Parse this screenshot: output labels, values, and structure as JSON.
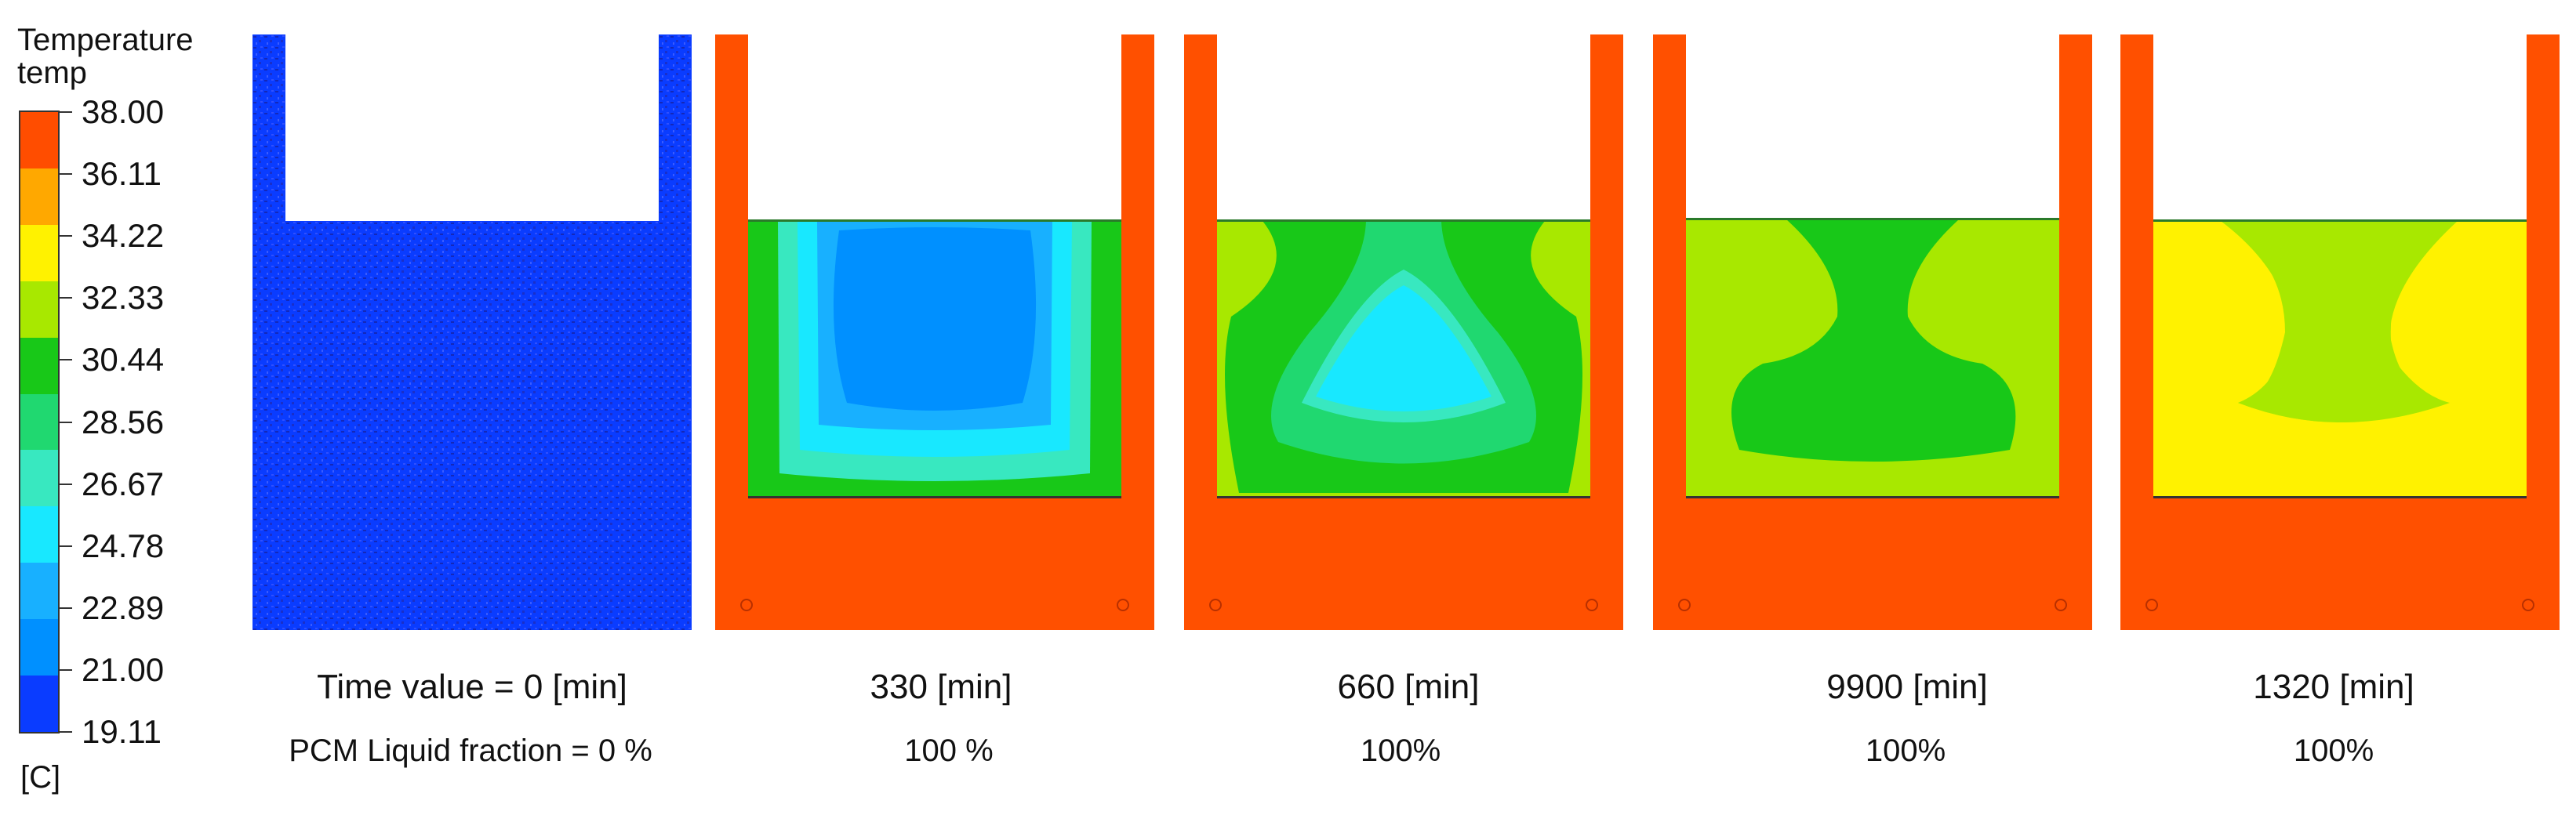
{
  "legend": {
    "title_line1": "Temperature",
    "title_line2": "temp",
    "unit": "[C]",
    "levels": [
      "38.00",
      "36.11",
      "34.22",
      "32.33",
      "30.44",
      "28.56",
      "26.67",
      "24.78",
      "22.89",
      "21.00",
      "19.11"
    ],
    "band_colors": [
      "#ff4d00",
      "#ffa800",
      "#fff200",
      "#a8e800",
      "#18c818",
      "#20d870",
      "#38e8c0",
      "#18e8ff",
      "#18b0ff",
      "#0090ff",
      "#0a3cff"
    ]
  },
  "colors": {
    "wall": "#ff5000",
    "deep_blue": "#0a32ff"
  },
  "panels": [
    {
      "time": "Time value = 0 [min]",
      "liquid": "PCM Liquid fraction = 0 %"
    },
    {
      "time": "330 [min]",
      "liquid": "100 %"
    },
    {
      "time": "660 [min]",
      "liquid": "100%"
    },
    {
      "time": "9900 [min]",
      "liquid": "100%"
    },
    {
      "time": "1320 [min]",
      "liquid": "100%"
    }
  ]
}
